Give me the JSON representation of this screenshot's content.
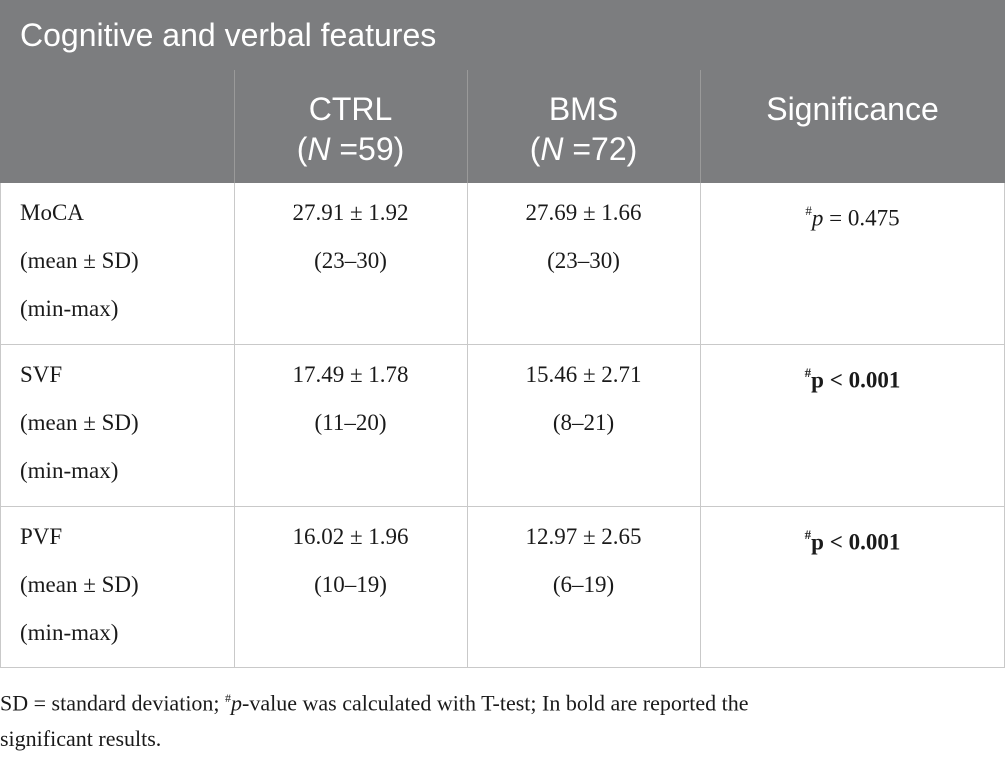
{
  "title": "Cognitive and verbal features",
  "columns": {
    "ctrl": {
      "name": "CTRL",
      "n_label": "N",
      "n_value": "=59)"
    },
    "bms": {
      "name": "BMS",
      "n_label": "N",
      "n_value": "=72)"
    },
    "significance": "Significance"
  },
  "rows": [
    {
      "name": "MoCA",
      "stat": "(mean ± SD)",
      "range": "(min-max)",
      "ctrl_mean": "27.91 ± 1.92",
      "ctrl_range": "(23–30)",
      "bms_mean": "27.69 ± 1.66",
      "bms_range": "(23–30)",
      "sig_mark": "#",
      "sig_p": "p",
      "sig_value": " = 0.475",
      "sig_bold": false
    },
    {
      "name": "SVF",
      "stat": "(mean ± SD)",
      "range": "(min-max)",
      "ctrl_mean": "17.49 ± 1.78",
      "ctrl_range": "(11–20)",
      "bms_mean": "15.46 ± 2.71",
      "bms_range": "(8–21)",
      "sig_mark": "#",
      "sig_p": "p",
      "sig_value": " < 0.001",
      "sig_bold": true
    },
    {
      "name": "PVF",
      "stat": "(mean ± SD)",
      "range": "(min-max)",
      "ctrl_mean": "16.02 ± 1.96",
      "ctrl_range": "(10–19)",
      "bms_mean": "12.97 ± 2.65",
      "bms_range": "(6–19)",
      "sig_mark": "#",
      "sig_p": "p",
      "sig_value": " < 0.001",
      "sig_bold": true
    }
  ],
  "footnote": {
    "part1": "SD = standard deviation; ",
    "mark": "#",
    "p": "p",
    "part2": "-value was calculated with T-test; In bold are reported the",
    "line2": "significant results."
  },
  "colors": {
    "header_bg": "#7c7d7f",
    "grid": "#c9c9c9"
  }
}
